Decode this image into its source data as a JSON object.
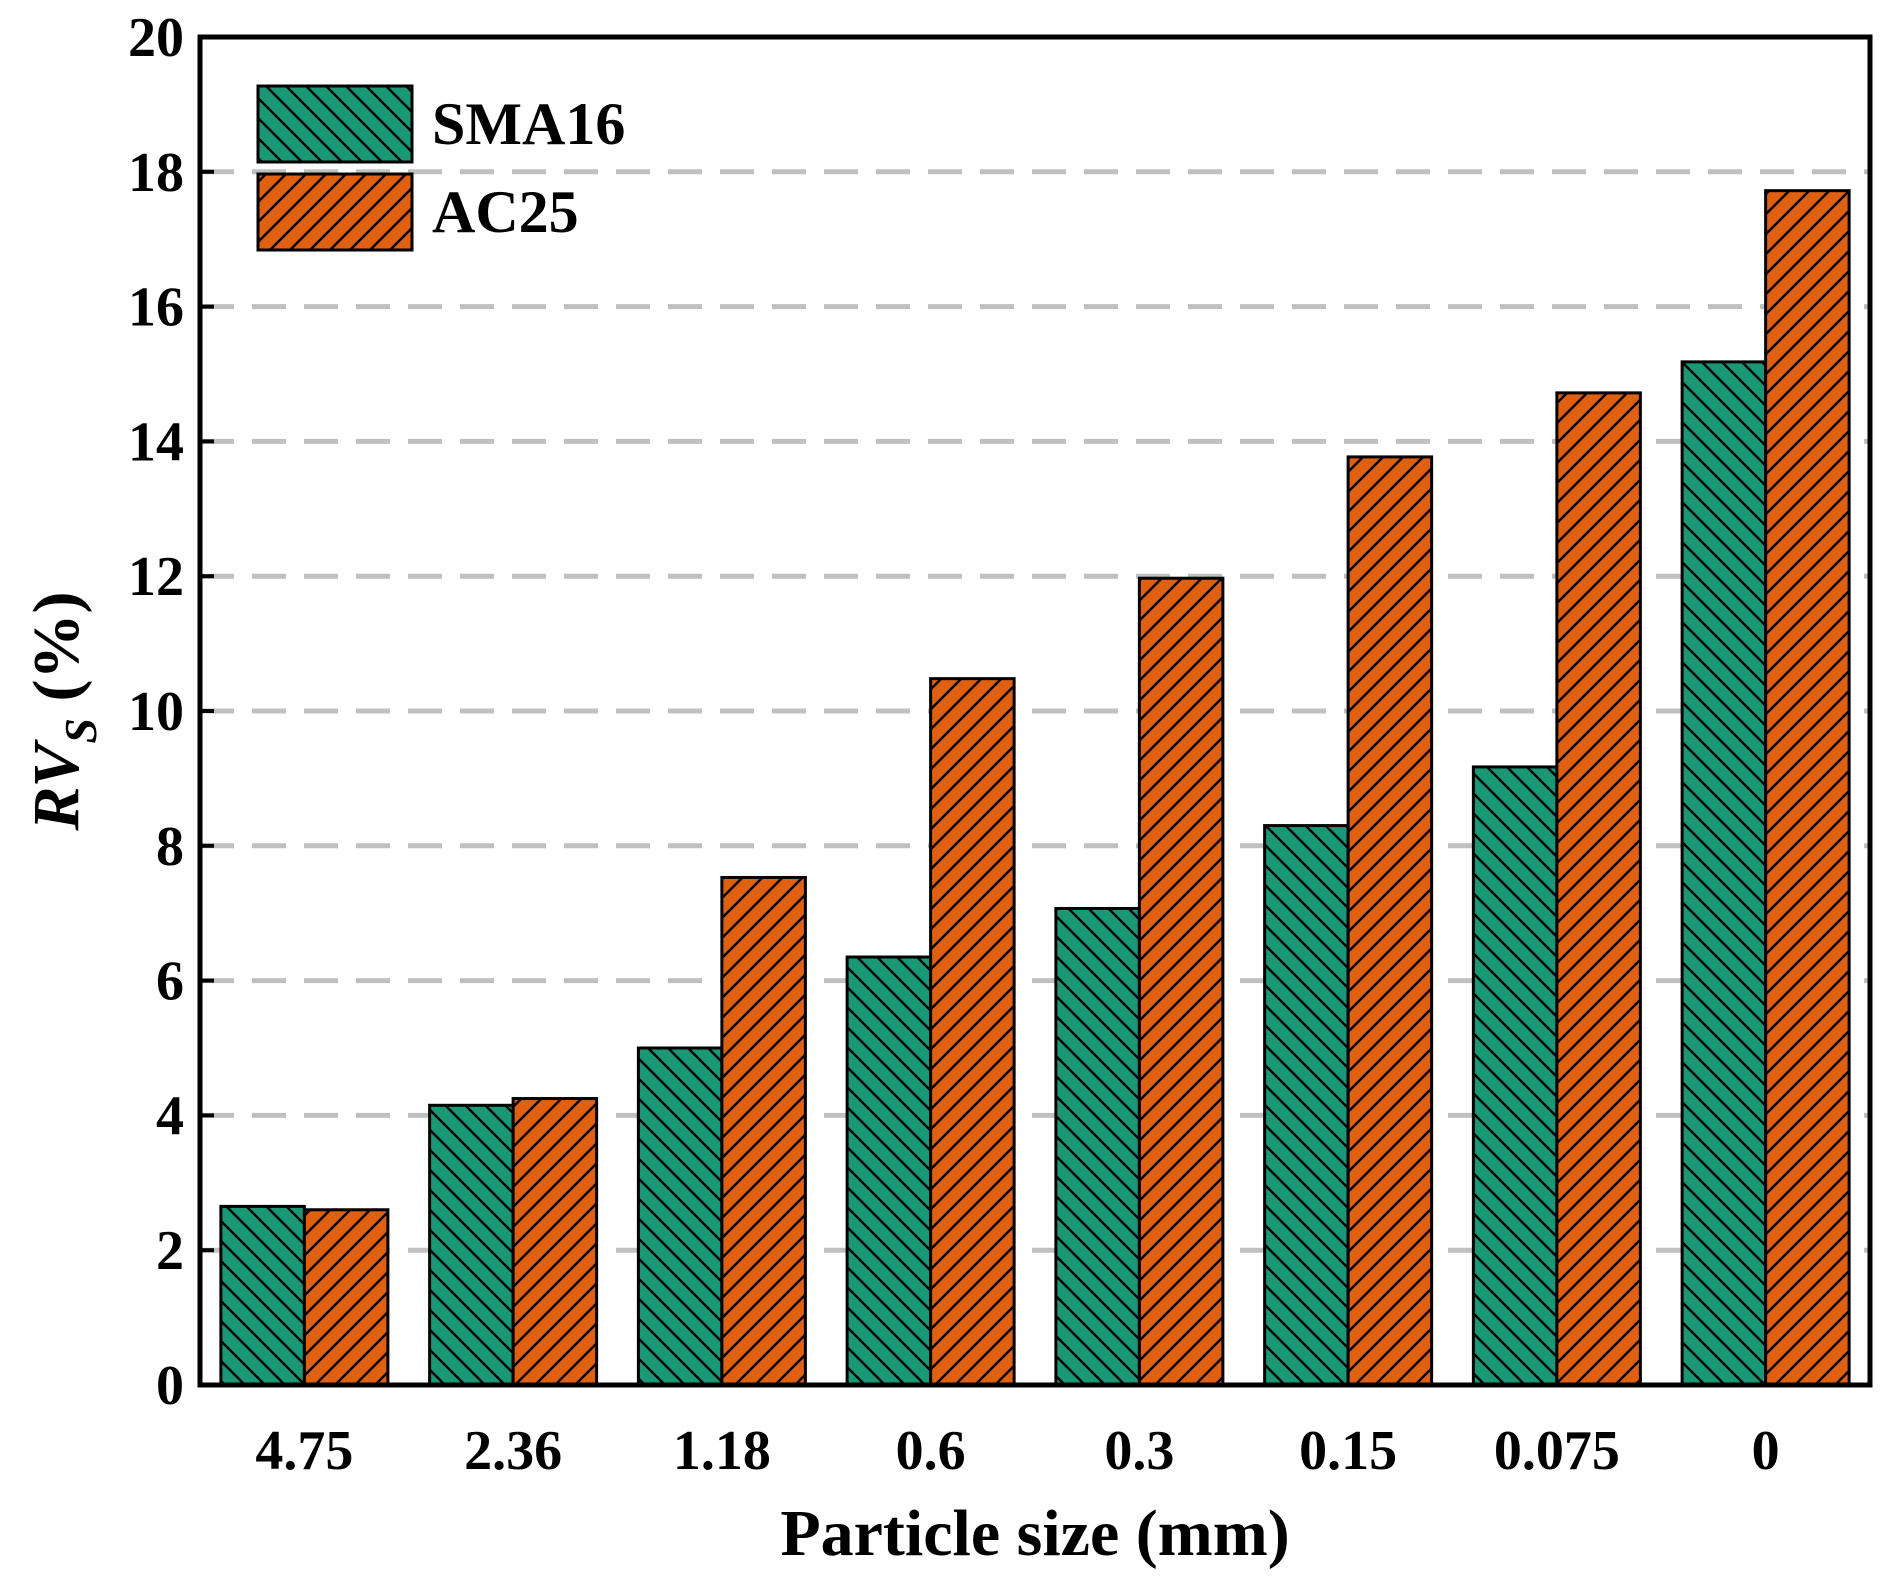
{
  "chart_data": {
    "type": "bar",
    "title": "",
    "xlabel": "Particle size (mm)",
    "ylabel": {
      "main": "RV",
      "subscript": "S",
      "suffix": " (%)"
    },
    "categories": [
      "4.75",
      "2.36",
      "1.18",
      "0.6",
      "0.3",
      "0.15",
      "0.075",
      "0"
    ],
    "series": [
      {
        "name": "SMA16",
        "color": "#1a9876",
        "hatch": "backslash",
        "values": [
          2.65,
          4.15,
          5.0,
          6.35,
          7.07,
          8.3,
          9.17,
          15.18
        ]
      },
      {
        "name": "AC25",
        "color": "#de6010",
        "hatch": "slash",
        "values": [
          2.6,
          4.25,
          7.53,
          10.48,
          11.97,
          13.77,
          14.72,
          17.72
        ]
      }
    ],
    "ylim": [
      0,
      20
    ],
    "yticks": [
      0,
      2,
      4,
      6,
      8,
      10,
      12,
      14,
      16,
      18,
      20
    ],
    "grid": {
      "y": true,
      "style": "dashed",
      "color": "#c0c0c0"
    },
    "legend": {
      "position": "top-left"
    }
  }
}
